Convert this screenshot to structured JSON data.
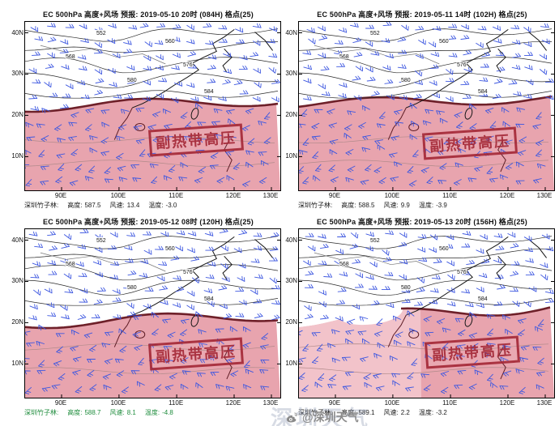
{
  "colors": {
    "pink": "#e8a4ae",
    "pink_light": "#f2c3ca",
    "boundary_red": "#6e2029",
    "stamp_red": "#a52a38",
    "barb_blue": "#3d57e0",
    "contour_black": "#2a2a2a",
    "status_green": "#1e8c3c",
    "status_black": "#1a1a1a"
  },
  "axes": {
    "lon_ticks": [
      "90E",
      "100E",
      "110E",
      "120E",
      "130E"
    ],
    "lat_ticks": [
      "40N",
      "30N",
      "20N",
      "10N"
    ]
  },
  "panels": [
    {
      "title": "EC 500hPa 高度+风场  预报: 2019-05-10 20时 (084H) 格点(25)",
      "stamp": "副热带高压",
      "contour_labels": [
        "552",
        "560",
        "568",
        "576",
        "580",
        "584"
      ],
      "status": {
        "station": "深圳竹子林:",
        "height_label": "高度:",
        "height": "587.5",
        "wind_label": "风速:",
        "wind": "13.4",
        "temp_label": "温度:",
        "temp": "-3.0"
      },
      "status_color": "#1a1a1a"
    },
    {
      "title": "EC 500hPa 高度+风场  预报: 2019-05-11 14时 (102H) 格点(25)",
      "stamp": "副热带高压",
      "contour_labels": [
        "552",
        "560",
        "568",
        "576",
        "580",
        "584"
      ],
      "status": {
        "station": "深圳竹子林:",
        "height_label": "高度:",
        "height": "588.5",
        "wind_label": "风速:",
        "wind": "9.9",
        "temp_label": "温度:",
        "temp": "-3.9"
      },
      "status_color": "#1a1a1a"
    },
    {
      "title": "EC 500hPa 高度+风场  预报: 2019-05-12 08时 (120H) 格点(25)",
      "stamp": "副热带高压",
      "contour_labels": [
        "552",
        "560",
        "568",
        "576",
        "580",
        "584"
      ],
      "status": {
        "station": "深圳竹子林:",
        "height_label": "高度:",
        "height": "588.7",
        "wind_label": "风速:",
        "wind": "8.1",
        "temp_label": "温度:",
        "temp": "-4.8"
      },
      "status_color": "#1e8c3c"
    },
    {
      "title": "EC 500hPa 高度+风场  预报: 2019-05-13 20时 (156H) 格点(25)",
      "stamp": "副热带高压",
      "contour_labels": [
        "552",
        "560",
        "568",
        "576",
        "580",
        "584"
      ],
      "status": {
        "station": "深圳竹子林:",
        "height_label": "高度:",
        "height": "589.1",
        "wind_label": "风速:",
        "wind": "2.2",
        "temp_label": "温度:",
        "temp": "-3.2"
      },
      "status_color": "#1a1a1a"
    }
  ],
  "watermark": {
    "big_text": "深圳天气",
    "handle": "@深圳天气"
  }
}
